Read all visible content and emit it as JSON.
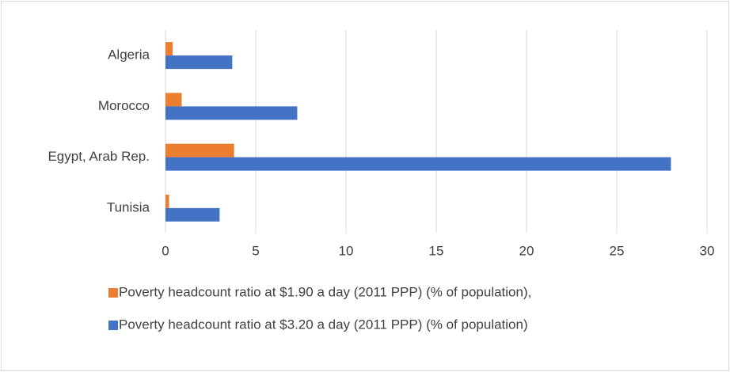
{
  "chart_data": {
    "type": "bar",
    "orientation": "horizontal",
    "categories": [
      "Algeria",
      "Morocco",
      "Egypt, Arab Rep.",
      "Tunisia"
    ],
    "series": [
      {
        "name": "Poverty headcount ratio at $1.90 a day (2011 PPP) (% of population),",
        "color": "#ed7d31",
        "values": [
          0.4,
          0.9,
          3.8,
          0.2
        ]
      },
      {
        "name": "Poverty headcount ratio at $3.20 a day (2011 PPP) (% of population)",
        "color": "#4472c4",
        "values": [
          3.7,
          7.3,
          28.0,
          3.0
        ]
      }
    ],
    "xlim": [
      0,
      30
    ],
    "xticks": [
      0,
      5,
      10,
      15,
      20,
      25,
      30
    ],
    "grid": true
  }
}
